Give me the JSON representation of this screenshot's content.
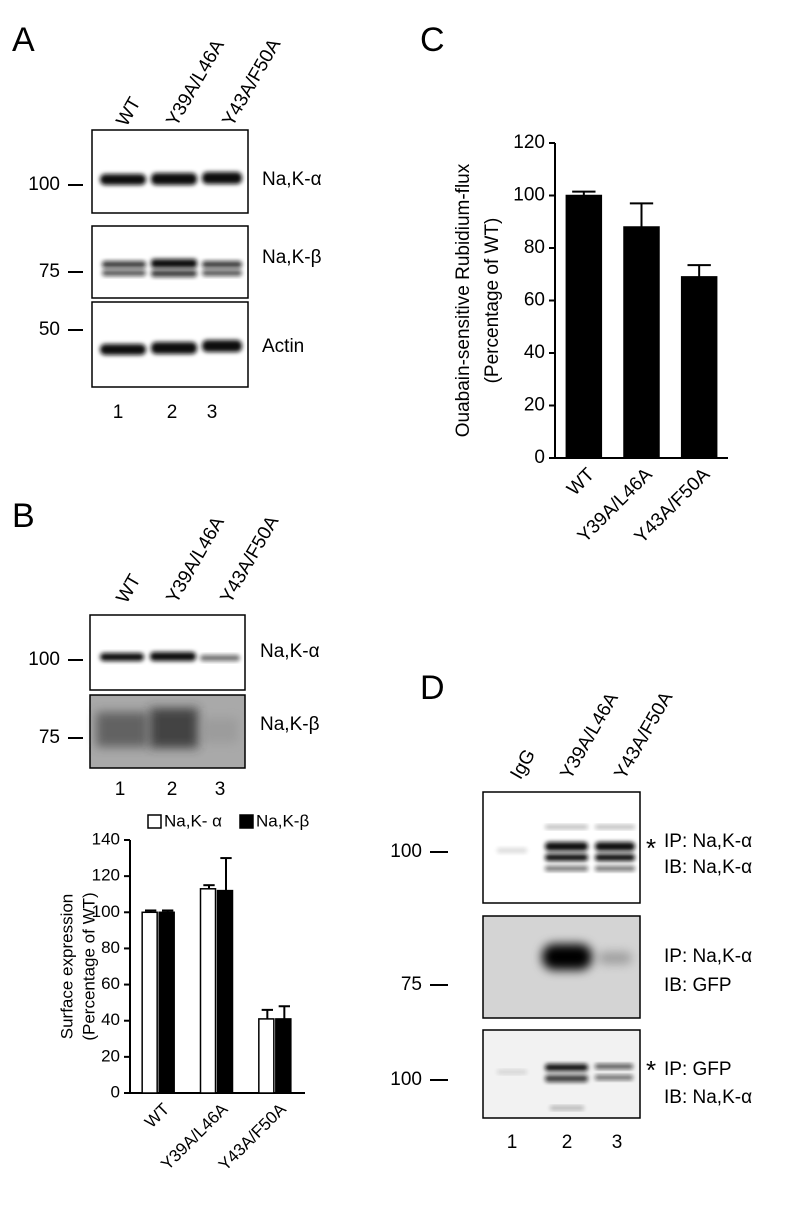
{
  "panels": {
    "A": {
      "label": "A",
      "lanes": [
        "WT",
        "Y39A/L46A",
        "Y43A/F50A"
      ],
      "markers": [
        100,
        75,
        50
      ],
      "blots": [
        "Na,K-α",
        "Na,K-β",
        "Actin"
      ],
      "lane_numbers": [
        "1",
        "2",
        "3"
      ]
    },
    "B": {
      "label": "B",
      "lanes": [
        "WT",
        "Y39A/L46A",
        "Y43A/F50A"
      ],
      "markers": [
        100,
        75
      ],
      "blots": [
        "Na,K-α",
        "Na,K-β"
      ],
      "lane_numbers": [
        "1",
        "2",
        "3"
      ]
    },
    "C": {
      "label": "C"
    },
    "D": {
      "label": "D",
      "lanes": [
        "IgG",
        "Y39A/L46A",
        "Y43A/F50A"
      ],
      "markers": [
        100,
        75,
        100
      ],
      "blots": [
        {
          "star": "*",
          "ip": "IP: Na,K-α",
          "ib": "IB: Na,K-α"
        },
        {
          "ip": "IP: Na,K-α",
          "ib": "IB: GFP"
        },
        {
          "star": "*",
          "ip": "IP: GFP",
          "ib": "IB: Na,K-α"
        }
      ],
      "lane_numbers": [
        "1",
        "2",
        "3"
      ]
    }
  },
  "chart_data": [
    {
      "type": "bar",
      "y_label": [
        "Ouabain-sensitive Rubidium-flux",
        "(Percentage of WT)"
      ],
      "categories": [
        "WT",
        "Y39A/L46A",
        "Y43A/F50A"
      ],
      "values": [
        100,
        88,
        69
      ],
      "errors": [
        1.5,
        9,
        4.5
      ],
      "color": "#000000",
      "ylim": [
        0,
        120
      ],
      "yticks": [
        0,
        20,
        40,
        60,
        80,
        100,
        120
      ]
    },
    {
      "type": "bar",
      "y_label": [
        "Surface expression",
        "(Percentage of WT)"
      ],
      "categories": [
        "WT",
        "Y39A/L46A",
        "Y43A/F50A"
      ],
      "series": [
        {
          "name": "Na,K- α",
          "color": "#ffffff",
          "values": [
            100,
            113,
            41
          ],
          "errors": [
            1,
            2,
            5
          ]
        },
        {
          "name": "Na,K-β",
          "color": "#000000",
          "values": [
            100,
            112,
            41
          ],
          "errors": [
            1,
            18,
            7
          ]
        }
      ],
      "ylim": [
        0,
        140
      ],
      "yticks": [
        0,
        20,
        40,
        60,
        80,
        100,
        120,
        140
      ]
    }
  ]
}
